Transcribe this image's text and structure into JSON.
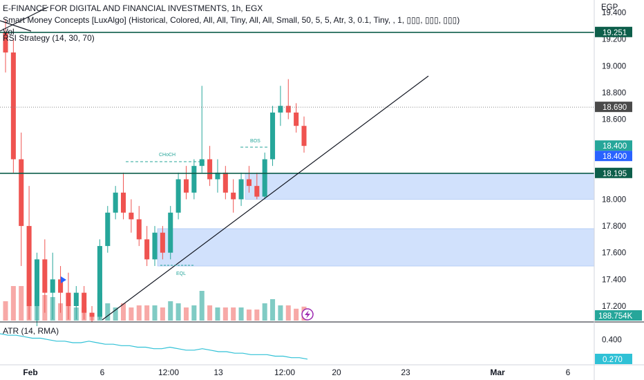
{
  "legend": {
    "title": "E-FINANCE FOR DIGITAL AND FINANCIAL INVESTMENTS, 1h, EGX",
    "indicator_smc": "Smart Money Concepts [LuxAlgo] (Historical, Colored, All, All, Tiny, All, All, Small, 50, 5, 5, Atr, 3, 0.1, Tiny, , 1, ▯▯▯, ▯▯▯, ▯▯▯)",
    "indicator_vol": "Vol",
    "indicator_rsi": "RSI Strategy (14, 30, 70)",
    "atr_label": "ATR (14, RMA)"
  },
  "axis": {
    "currency": "EGP",
    "price_ticks": [
      "19.400",
      "19.200",
      "19.000",
      "18.800",
      "18.600",
      "18.400",
      "18.200",
      "18.000",
      "17.800",
      "17.600",
      "17.400",
      "17.200"
    ],
    "atr_ticks": [
      "0.400"
    ],
    "time_labels": [
      "Feb",
      "6",
      "12:00",
      "13",
      "12:00",
      "20",
      "23",
      "Mar",
      "6"
    ]
  },
  "price_tags": {
    "level_upper": "19.251",
    "last_close_dotted": "18.690",
    "current_price": "18.400",
    "current_price_blue": "18.400",
    "level_lower": "18.195",
    "volume": "188.754K",
    "atr_value": "0.270"
  },
  "annotations": {
    "choch": "CHoCH",
    "bos": "BOS",
    "eql": "EQL"
  },
  "colors": {
    "up": "#26a69a",
    "down": "#ef5350",
    "up_vol": "#80cbc4",
    "down_vol": "#f7a9a7",
    "zone": "#c9dcfb",
    "level_line": "#0d5e4a",
    "atr_line": "#2fc1d6",
    "current_tag": "#26a69a",
    "blue_tag": "#2962ff",
    "dark_tag": "#131722",
    "grey_tag": "#4a4a4a"
  },
  "chart_data": {
    "type": "candlestick",
    "symbol": "E-FINANCE FOR DIGITAL AND FINANCIAL INVESTMENTS",
    "interval": "1h",
    "exchange": "EGX",
    "currency": "EGP",
    "ylim": [
      17.1,
      19.45
    ],
    "horizontal_levels": [
      19.251,
      18.195
    ],
    "demand_zones": [
      {
        "low": 18.0,
        "high": 18.195
      },
      {
        "low": 17.5,
        "high": 17.78
      }
    ],
    "last_price": 18.4,
    "ohlc": [
      [
        19.25,
        19.35,
        18.95,
        19.1
      ],
      [
        19.1,
        19.2,
        18.2,
        18.3
      ],
      [
        18.3,
        18.5,
        17.5,
        17.8
      ],
      [
        17.8,
        18.1,
        17.1,
        17.2
      ],
      [
        17.2,
        17.6,
        17.05,
        17.55
      ],
      [
        17.55,
        17.7,
        17.15,
        17.3
      ],
      [
        17.3,
        17.6,
        17.1,
        17.4
      ],
      [
        17.4,
        17.5,
        17.15,
        17.3
      ],
      [
        17.3,
        17.45,
        17.1,
        17.2
      ],
      [
        17.2,
        17.35,
        17.1,
        17.3
      ],
      [
        17.3,
        17.35,
        17.1,
        17.15
      ],
      [
        17.15,
        17.2,
        17.08,
        17.12
      ],
      [
        17.12,
        17.7,
        17.1,
        17.65
      ],
      [
        17.65,
        17.95,
        17.6,
        17.9
      ],
      [
        17.9,
        18.1,
        17.85,
        18.05
      ],
      [
        18.05,
        18.2,
        17.85,
        17.9
      ],
      [
        17.9,
        18.0,
        17.75,
        17.85
      ],
      [
        17.85,
        17.95,
        17.65,
        17.7
      ],
      [
        17.7,
        17.8,
        17.5,
        17.55
      ],
      [
        17.55,
        17.8,
        17.5,
        17.75
      ],
      [
        17.75,
        17.8,
        17.55,
        17.6
      ],
      [
        17.6,
        17.95,
        17.55,
        17.9
      ],
      [
        17.9,
        18.2,
        17.85,
        18.15
      ],
      [
        18.15,
        18.25,
        18.0,
        18.05
      ],
      [
        18.05,
        18.3,
        18.0,
        18.25
      ],
      [
        18.25,
        18.85,
        18.2,
        18.3
      ],
      [
        18.3,
        18.4,
        18.1,
        18.15
      ],
      [
        18.15,
        18.3,
        18.05,
        18.2
      ],
      [
        18.2,
        18.25,
        18.0,
        18.05
      ],
      [
        18.05,
        18.15,
        17.9,
        18.0
      ],
      [
        18.0,
        18.2,
        17.95,
        18.15
      ],
      [
        18.15,
        18.25,
        18.05,
        18.1
      ],
      [
        18.1,
        18.2,
        18.0,
        18.02
      ],
      [
        18.02,
        18.35,
        18.0,
        18.3
      ],
      [
        18.3,
        18.7,
        18.25,
        18.65
      ],
      [
        18.65,
        18.85,
        18.55,
        18.7
      ],
      [
        18.7,
        18.9,
        18.6,
        18.65
      ],
      [
        18.65,
        18.72,
        18.5,
        18.55
      ],
      [
        18.55,
        18.62,
        18.35,
        18.4
      ]
    ],
    "atr": {
      "series_name": "ATR (14, RMA)",
      "last": 0.27,
      "ylim": [
        0.2,
        0.5
      ],
      "values": [
        0.44,
        0.43,
        0.43,
        0.42,
        0.41,
        0.41,
        0.4,
        0.39,
        0.39,
        0.38,
        0.38,
        0.39,
        0.38,
        0.37,
        0.37,
        0.36,
        0.36,
        0.35,
        0.35,
        0.34,
        0.34,
        0.35,
        0.34,
        0.33,
        0.33,
        0.34,
        0.33,
        0.32,
        0.32,
        0.31,
        0.31,
        0.3,
        0.3,
        0.3,
        0.29,
        0.29,
        0.28,
        0.28,
        0.27
      ]
    }
  }
}
